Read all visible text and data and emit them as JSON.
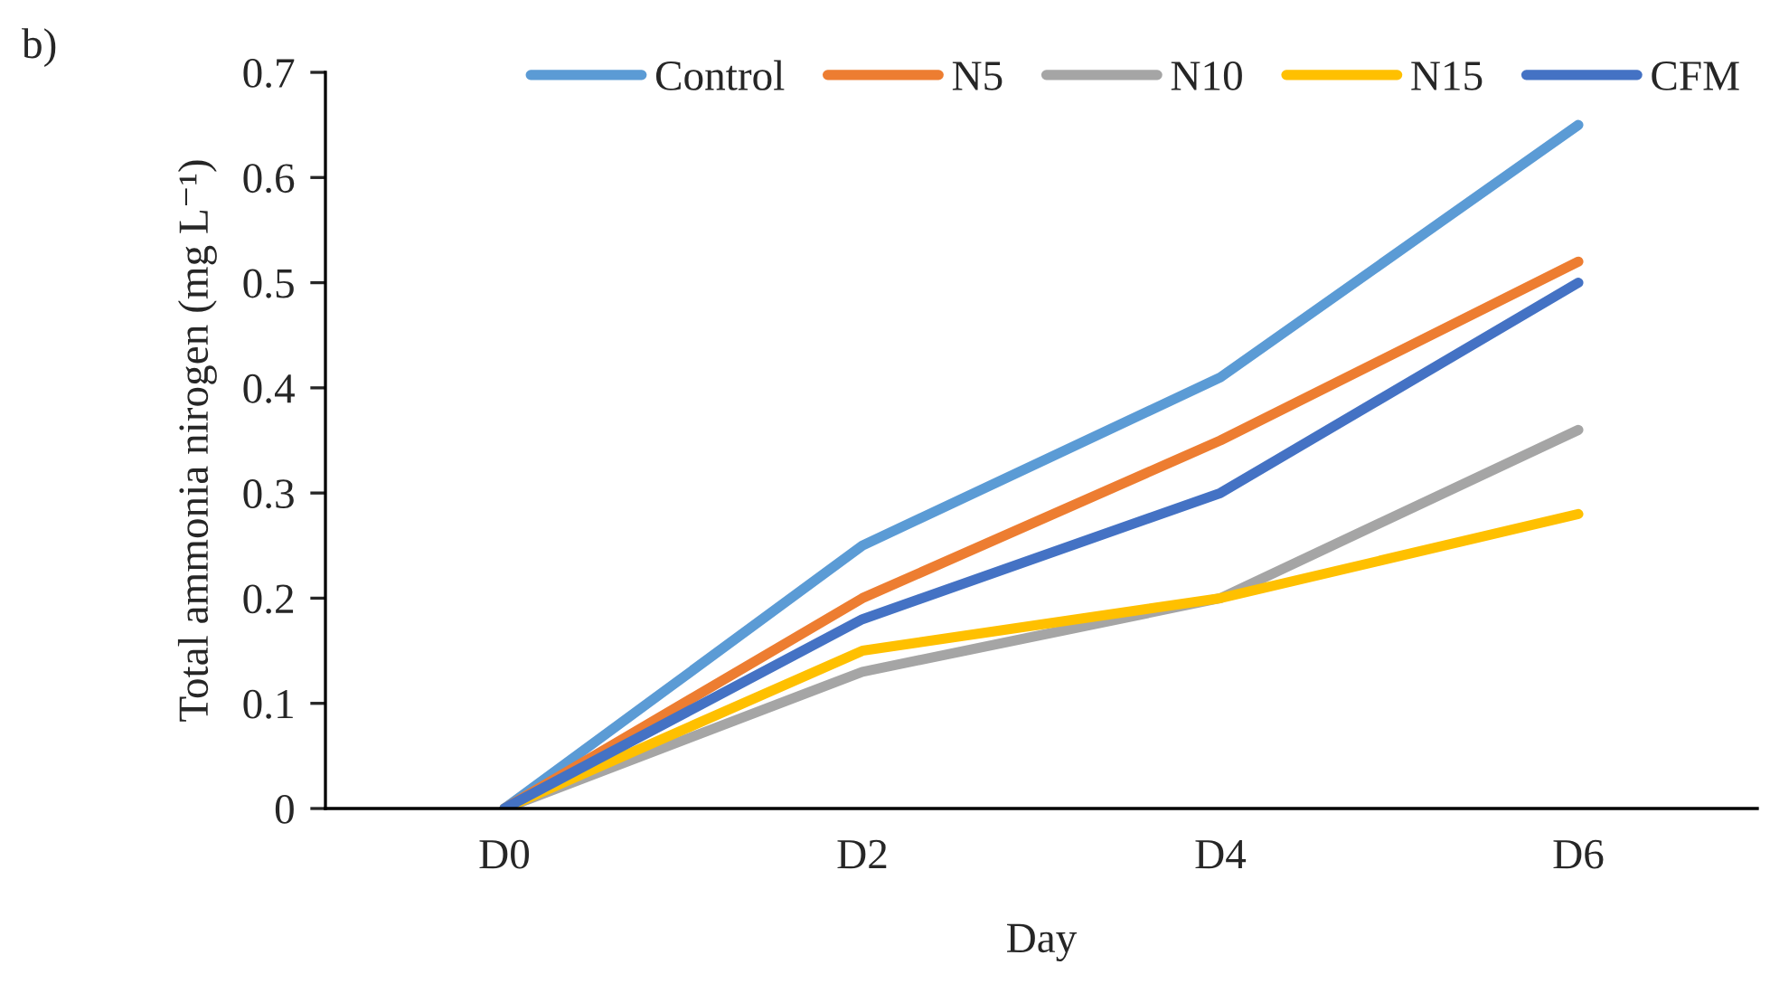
{
  "chart_data": {
    "type": "line",
    "ylabel": "Total ammonia nirogen (mg L⁻¹)",
    "xlabel": "Day",
    "annotations": [
      "b)"
    ],
    "categories": [
      "D0",
      "D2",
      "D4",
      "D6"
    ],
    "series": [
      {
        "name": "Control",
        "color": "#5b9bd5",
        "values": [
          0,
          0.25,
          0.41,
          0.65
        ]
      },
      {
        "name": "N5",
        "color": "#ed7d31",
        "values": [
          0,
          0.2,
          0.35,
          0.52
        ]
      },
      {
        "name": "N10",
        "color": "#a5a5a5",
        "values": [
          0,
          0.13,
          0.2,
          0.36
        ]
      },
      {
        "name": "N15",
        "color": "#ffc000",
        "values": [
          0,
          0.15,
          0.2,
          0.28
        ]
      },
      {
        "name": "CFM",
        "color": "#4472c4",
        "values": [
          0,
          0.18,
          0.3,
          0.5
        ]
      }
    ],
    "ylim": [
      0,
      0.7
    ],
    "yticks": [
      0,
      0.1,
      0.2,
      0.3,
      0.4,
      0.5,
      0.6,
      0.7
    ],
    "legend": "top right",
    "grid": false,
    "marker": "none",
    "line_style": "solid"
  }
}
